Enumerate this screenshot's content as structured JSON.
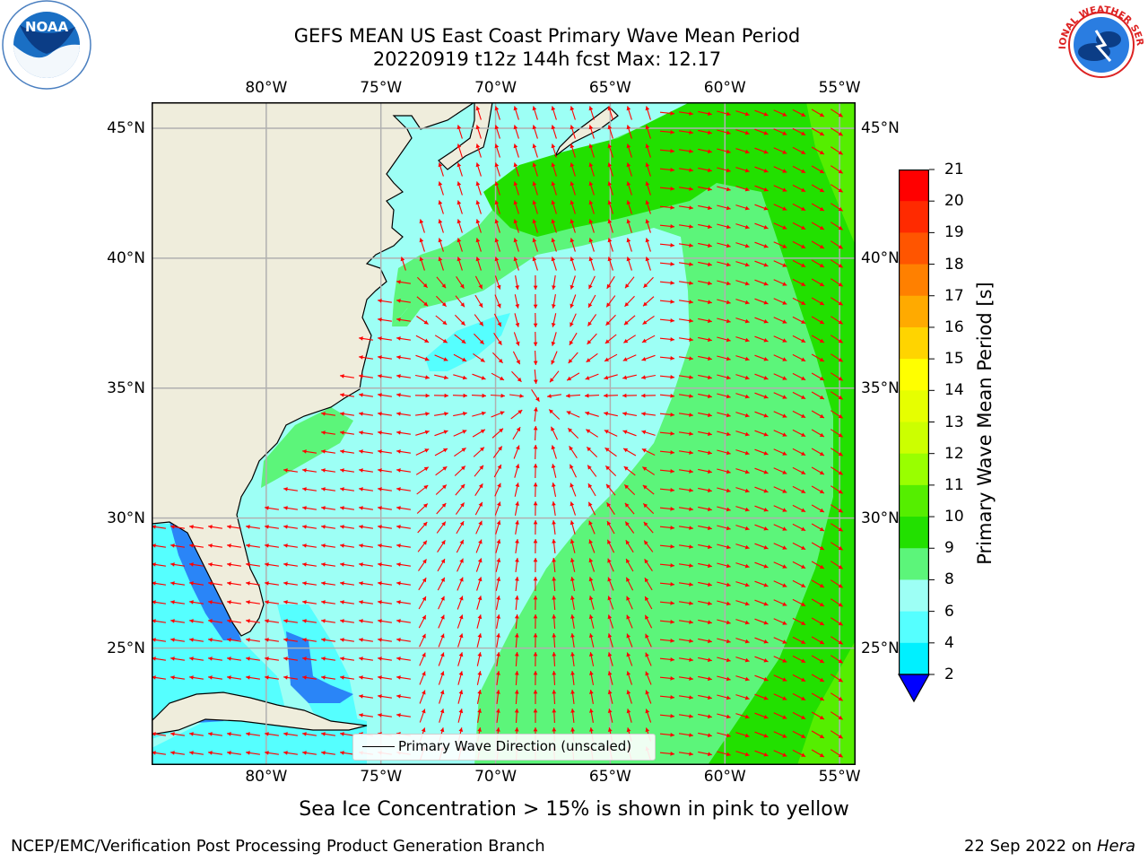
{
  "header": {
    "title_line1": "GEFS MEAN US East Coast Primary Wave Mean Period",
    "title_line2": "20220919 t12z 144h fcst   Max: 12.17"
  },
  "logos": {
    "left": "NOAA",
    "right": "NATIONAL WEATHER SERVICE"
  },
  "map": {
    "lon_ticks": [
      "80°W",
      "75°W",
      "70°W",
      "65°W",
      "60°W",
      "55°W"
    ],
    "lat_ticks": [
      "45°N",
      "40°N",
      "35°N",
      "30°N",
      "25°N"
    ],
    "lon_values": [
      -80,
      -75,
      -70,
      -65,
      -60,
      -55
    ],
    "lat_values": [
      45,
      40,
      35,
      30,
      25
    ],
    "lon_range": [
      -85,
      -54.3
    ],
    "lat_range": [
      20.5,
      46
    ],
    "legend_label": "Primary Wave Direction (unscaled)",
    "arrow_color": "#ff0000",
    "land_color": "#efeddc"
  },
  "colorbar": {
    "title": "Primary Wave Mean Period [s]",
    "labels": [
      "21",
      "20",
      "19",
      "18",
      "17",
      "16",
      "15",
      "14",
      "13",
      "12",
      "11",
      "10",
      "9",
      "8",
      "6",
      "4",
      "2"
    ],
    "colors": [
      "#ff0000",
      "#ff2a00",
      "#ff5500",
      "#ff8000",
      "#ffaa00",
      "#ffd400",
      "#ffff00",
      "#e6ff00",
      "#ccff00",
      "#99ff00",
      "#55ee00",
      "#22e000",
      "#5cf57a",
      "#9dfff5",
      "#55ffff",
      "#00f0ff",
      "#0088ff"
    ],
    "extend_color": "#0000ff"
  },
  "footer": {
    "note": "Sea Ice Concentration > 15% is shown in pink to yellow",
    "left": "NCEP/EMC/Verification Post Processing Product Generation Branch",
    "right_date": "22 Sep 2022 on ",
    "right_host": "Hera"
  }
}
